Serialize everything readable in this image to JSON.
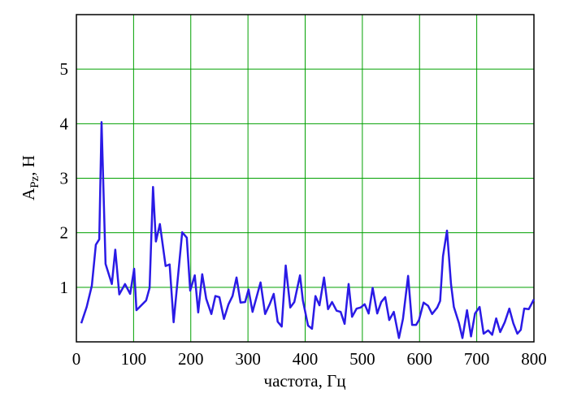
{
  "chart_data": {
    "type": "line",
    "xlabel": "частота, Гц",
    "ylabel": "A",
    "ylabel_sub": "Pz",
    "ylabel_unit": ", Н",
    "xlim": [
      0,
      800
    ],
    "xticks": [
      0,
      100,
      200,
      300,
      400,
      500,
      600,
      700,
      800
    ],
    "ylim": [
      0,
      6
    ],
    "yticks": [
      1,
      2,
      3,
      4,
      5
    ],
    "grid": true,
    "grid_color": "#00a000",
    "series": [
      {
        "color": "#2a1ae6",
        "x": [
          8.5,
          18,
          27,
          34,
          40,
          44,
          51,
          62,
          68,
          75,
          85,
          94,
          101,
          105,
          122,
          128,
          134,
          139,
          146,
          156,
          163,
          170,
          185,
          193,
          199,
          207,
          213,
          220,
          227,
          236,
          243,
          250,
          258,
          266,
          273,
          280,
          287,
          295,
          301,
          308,
          322,
          330,
          338,
          345,
          352,
          359,
          366,
          374,
          381,
          391,
          396,
          405,
          412,
          418,
          425,
          433,
          440,
          447,
          455,
          462,
          469,
          476,
          482,
          490,
          497,
          504,
          511,
          518,
          526,
          533,
          540,
          547,
          555,
          564,
          571,
          580,
          587,
          594,
          599,
          607,
          615,
          622,
          631,
          636,
          641,
          648,
          655,
          660,
          669,
          675,
          683,
          690,
          697,
          705,
          712,
          720,
          727,
          734,
          741,
          749,
          757,
          764,
          771,
          777,
          783,
          791,
          800
        ],
        "values": [
          0.34,
          0.64,
          1.03,
          1.78,
          1.88,
          4.03,
          1.43,
          1.06,
          1.69,
          0.87,
          1.06,
          0.88,
          1.34,
          0.58,
          0.76,
          0.99,
          2.84,
          1.84,
          2.16,
          1.39,
          1.42,
          0.36,
          2.01,
          1.91,
          0.94,
          1.22,
          0.54,
          1.24,
          0.79,
          0.51,
          0.84,
          0.82,
          0.42,
          0.69,
          0.84,
          1.18,
          0.72,
          0.73,
          0.96,
          0.55,
          1.09,
          0.51,
          0.69,
          0.88,
          0.37,
          0.28,
          1.4,
          0.63,
          0.73,
          1.22,
          0.76,
          0.3,
          0.24,
          0.84,
          0.67,
          1.18,
          0.6,
          0.73,
          0.57,
          0.55,
          0.33,
          1.06,
          0.46,
          0.61,
          0.63,
          0.69,
          0.52,
          0.99,
          0.52,
          0.73,
          0.82,
          0.4,
          0.55,
          0.07,
          0.42,
          1.21,
          0.31,
          0.31,
          0.4,
          0.72,
          0.66,
          0.51,
          0.63,
          0.75,
          1.57,
          2.04,
          1.06,
          0.64,
          0.34,
          0.07,
          0.58,
          0.1,
          0.52,
          0.64,
          0.15,
          0.21,
          0.13,
          0.43,
          0.18,
          0.36,
          0.61,
          0.34,
          0.15,
          0.22,
          0.61,
          0.6,
          0.78
        ]
      }
    ]
  }
}
